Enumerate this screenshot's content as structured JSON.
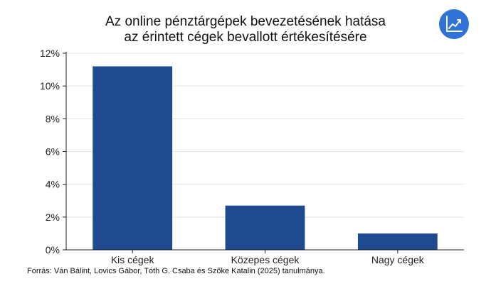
{
  "title": {
    "line1": "Az online pénztárgépek bevezetésének hatása",
    "line2": "az érintett cégek bevallott értékesítésére"
  },
  "badge": {
    "icon": "line-chart-icon",
    "color": "#2f73d8"
  },
  "source": "Forrás: Ván Bálint, Lovics Gábor, Tóth G. Csaba és Szőke Katalin (2025) tanulmánya.",
  "chart_data": {
    "type": "bar",
    "categories": [
      "Kis cégek",
      "Közepes cégek",
      "Nagy cégek"
    ],
    "values": [
      11.2,
      2.7,
      1.0
    ],
    "ylim": [
      0,
      12
    ],
    "yticks": [
      0,
      2,
      4,
      6,
      8,
      10,
      12
    ],
    "ytick_labels": [
      "0%",
      "2%",
      "4%",
      "6%",
      "8%",
      "10%",
      "12%"
    ],
    "grid": true,
    "bar_color": "#1f4a8f"
  }
}
